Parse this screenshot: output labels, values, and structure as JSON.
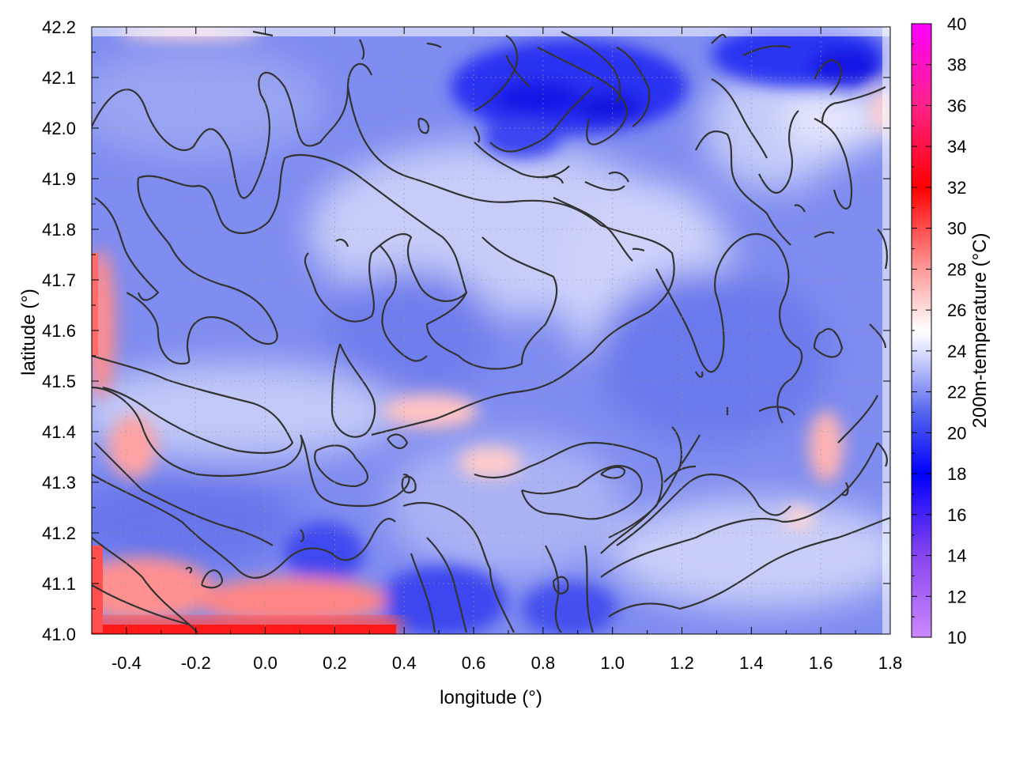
{
  "chart_data": {
    "type": "heatmap",
    "xlabel": "longitude (°)",
    "ylabel": "latitude (°)",
    "colorbar_label": "200m-temperature (°C)",
    "xlim": [
      -0.5,
      1.8
    ],
    "ylim": [
      41.0,
      42.2
    ],
    "x_ticks": [
      "-0.4",
      "-0.2",
      "0.0",
      "0.2",
      "0.4",
      "0.6",
      "0.8",
      "1.0",
      "1.2",
      "1.4",
      "1.6",
      "1.8"
    ],
    "y_ticks": [
      "41.0",
      "41.1",
      "41.2",
      "41.3",
      "41.4",
      "41.5",
      "41.6",
      "41.7",
      "41.8",
      "41.9",
      "42.0",
      "42.1",
      "42.2"
    ],
    "colorbar_range": [
      10,
      40
    ],
    "colorbar_ticks": [
      "10",
      "12",
      "14",
      "16",
      "18",
      "20",
      "22",
      "24",
      "26",
      "28",
      "30",
      "32",
      "34",
      "36",
      "38",
      "40"
    ],
    "colormap": [
      {
        "value": 10,
        "color": "#cc88ff"
      },
      {
        "value": 14,
        "color": "#8844ee"
      },
      {
        "value": 18,
        "color": "#0000ff"
      },
      {
        "value": 21,
        "color": "#5566ee"
      },
      {
        "value": 24,
        "color": "#dde0ff"
      },
      {
        "value": 25,
        "color": "#ffffff"
      },
      {
        "value": 28,
        "color": "#ff9999"
      },
      {
        "value": 32,
        "color": "#ff0000"
      },
      {
        "value": 36,
        "color": "#ff2288"
      },
      {
        "value": 40,
        "color": "#ff00ff"
      }
    ],
    "grid": true,
    "contours": true,
    "field_samples": [
      {
        "lon": -0.4,
        "lat": 42.1,
        "t": 21.5
      },
      {
        "lon": 0.0,
        "lat": 42.1,
        "t": 21.0
      },
      {
        "lon": 0.4,
        "lat": 42.1,
        "t": 21.5
      },
      {
        "lon": 0.8,
        "lat": 42.1,
        "t": 16.5
      },
      {
        "lon": 1.0,
        "lat": 42.1,
        "t": 17.5
      },
      {
        "lon": 1.6,
        "lat": 42.15,
        "t": 17.5
      },
      {
        "lon": 1.4,
        "lat": 41.9,
        "t": 20.5
      },
      {
        "lon": 0.3,
        "lat": 41.8,
        "t": 23.0
      },
      {
        "lon": 0.9,
        "lat": 41.7,
        "t": 23.5
      },
      {
        "lon": 0.0,
        "lat": 41.6,
        "t": 21.5
      },
      {
        "lon": -0.45,
        "lat": 41.65,
        "t": 30.0
      },
      {
        "lon": -0.35,
        "lat": 41.35,
        "t": 28.5
      },
      {
        "lon": 0.55,
        "lat": 41.45,
        "t": 26.5
      },
      {
        "lon": 0.9,
        "lat": 41.3,
        "t": 22.0
      },
      {
        "lon": 1.55,
        "lat": 41.4,
        "t": 26.5
      },
      {
        "lon": -0.35,
        "lat": 41.05,
        "t": 31.0
      },
      {
        "lon": 0.1,
        "lat": 41.03,
        "t": 32.0
      },
      {
        "lon": 0.6,
        "lat": 41.1,
        "t": 20.5
      },
      {
        "lon": 1.4,
        "lat": 41.15,
        "t": 22.5
      }
    ]
  }
}
